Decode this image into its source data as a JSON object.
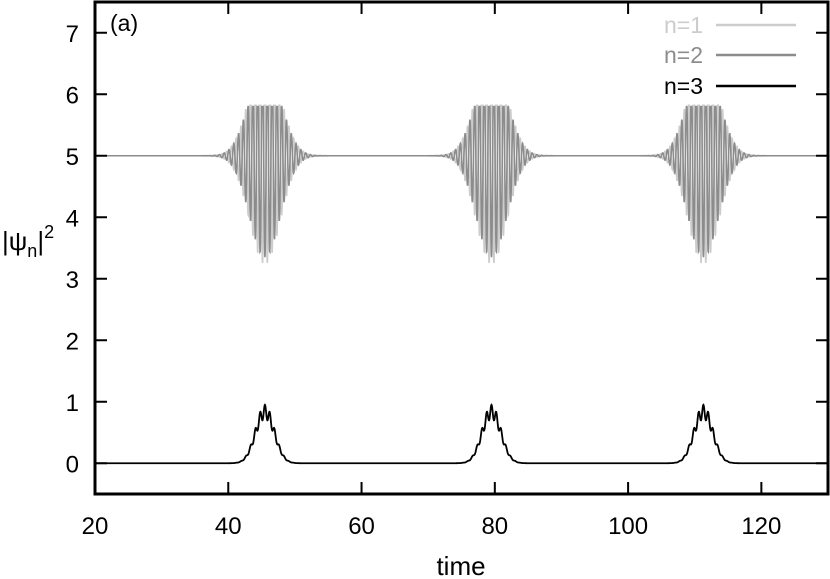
{
  "chart_data": {
    "type": "line",
    "panel_label": "(a)",
    "xlabel": "time",
    "ylabel": "|ψn|2",
    "ylabel_parts": {
      "base": "|ψ",
      "sub": "n",
      "bar": "|",
      "sup": "2"
    },
    "xlim": [
      20,
      130
    ],
    "ylim": [
      -0.5,
      7.5
    ],
    "xticks": [
      20,
      40,
      60,
      80,
      100,
      120
    ],
    "yticks": [
      0,
      1,
      2,
      3,
      4,
      5,
      6,
      7
    ],
    "grid": false,
    "legend_position": "top-right",
    "burst_centers": [
      45.5,
      79.5,
      111.3
    ],
    "series": [
      {
        "name": "n=1",
        "color": "#cccccc",
        "baseline": 5.0,
        "peak_max": 5.82,
        "peak_min": 3.25,
        "description_values": "oscillatory bursts around 5 at t≈45.5, 79.5, 111.3"
      },
      {
        "name": "n=2",
        "color": "#8c8c8c",
        "baseline": 5.0,
        "peak_max": 5.8,
        "peak_min": 3.35
      },
      {
        "name": "n=3",
        "color": "#000000",
        "baseline": 0.0,
        "peak_max": 0.95,
        "peak_min": 0.0
      }
    ]
  }
}
